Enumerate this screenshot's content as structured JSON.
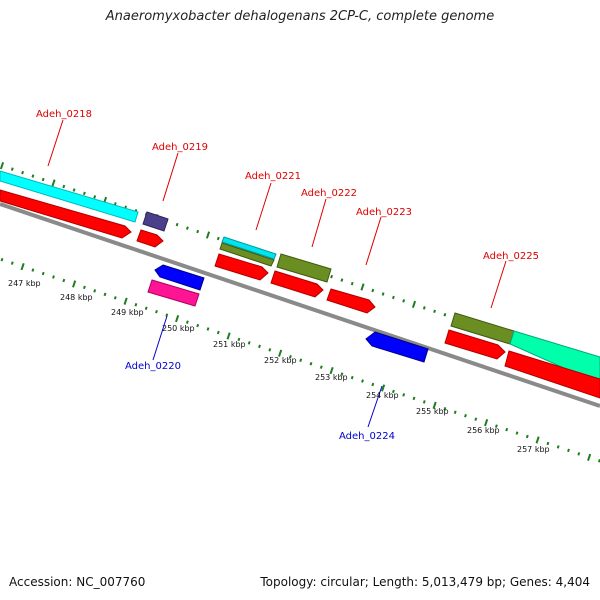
{
  "title": "Anaeromyxobacter dehalogenans 2CP-C, complete genome",
  "footer": {
    "accession": "Accession: NC_007760",
    "summary": "Topology: circular; Length: 5,013,479 bp; Genes: 4,404"
  },
  "colors": {
    "backbone": "#888888",
    "tick": "#1e7d1e",
    "label_forward": "#dd0000",
    "label_reverse": "#0000cc",
    "cds": "#ff0000",
    "gene_cyan": "#00ffff",
    "gene_olive": "#6b8e23",
    "gene_purple": "#4b3f8c",
    "gene_blue": "#0000ff",
    "gene_pink": "#ff1493",
    "gene_aqua": "#00ffaa"
  },
  "scale_labels": [
    "247 kbp",
    "248 kbp",
    "249 kbp",
    "250 kbp",
    "251 kbp",
    "252 kbp",
    "253 kbp",
    "254 kbp",
    "255 kbp",
    "256 kbp",
    "257 kbp"
  ],
  "forward_genes": [
    {
      "name": "Adeh_0218"
    },
    {
      "name": "Adeh_0219"
    },
    {
      "name": "Adeh_0221"
    },
    {
      "name": "Adeh_0222"
    },
    {
      "name": "Adeh_0223"
    },
    {
      "name": "Adeh_0225"
    }
  ],
  "reverse_genes": [
    {
      "name": "Adeh_0220"
    },
    {
      "name": "Adeh_0224"
    }
  ]
}
